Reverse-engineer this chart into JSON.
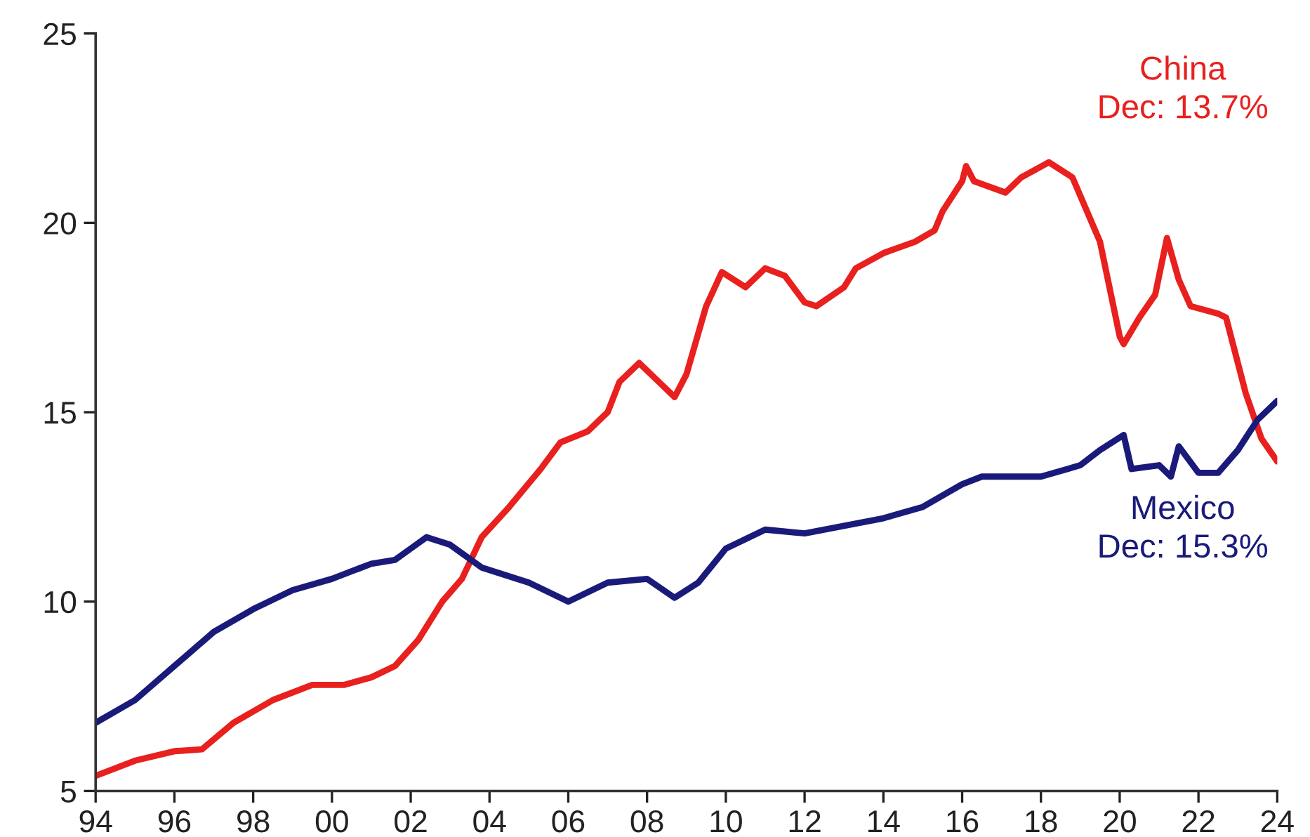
{
  "chart_data": {
    "type": "line",
    "xlim": [
      1994,
      2024
    ],
    "ylim": [
      5,
      25
    ],
    "xticks": [
      {
        "value": 1994,
        "label": "94"
      },
      {
        "value": 1996,
        "label": "96"
      },
      {
        "value": 1998,
        "label": "98"
      },
      {
        "value": 2000,
        "label": "00"
      },
      {
        "value": 2002,
        "label": "02"
      },
      {
        "value": 2004,
        "label": "04"
      },
      {
        "value": 2006,
        "label": "06"
      },
      {
        "value": 2008,
        "label": "08"
      },
      {
        "value": 2010,
        "label": "10"
      },
      {
        "value": 2012,
        "label": "12"
      },
      {
        "value": 2014,
        "label": "14"
      },
      {
        "value": 2016,
        "label": "16"
      },
      {
        "value": 2018,
        "label": "18"
      },
      {
        "value": 2020,
        "label": "20"
      },
      {
        "value": 2022,
        "label": "22"
      },
      {
        "value": 2024,
        "label": "24"
      }
    ],
    "yticks": [
      5,
      10,
      15,
      20,
      25
    ],
    "grid": false,
    "legend": false,
    "annotations": [
      "Dec: 13.7%",
      "Dec: 15.3%"
    ],
    "series": [
      {
        "name": "China",
        "color": "#e8201e",
        "x": [
          1994,
          1995,
          1996,
          1996.7,
          1997.5,
          1998.5,
          1999.5,
          2000.3,
          2001,
          2001.6,
          2002.2,
          2002.8,
          2003.3,
          2003.8,
          2004.5,
          2005.3,
          2005.8,
          2006.5,
          2007,
          2007.3,
          2007.8,
          2008.3,
          2008.7,
          2009,
          2009.5,
          2009.9,
          2010.5,
          2011,
          2011.5,
          2012,
          2012.3,
          2013,
          2013.3,
          2014,
          2014.8,
          2015.3,
          2015.5,
          2016,
          2016.1,
          2016.3,
          2017.1,
          2017.5,
          2018.2,
          2018.8,
          2019.5,
          2020,
          2020.1,
          2020.5,
          2020.9,
          2021.2,
          2021.5,
          2021.8,
          2022.5,
          2022.7,
          2023.2,
          2023.6,
          2024
        ],
        "values": [
          5.4,
          5.8,
          6.05,
          6.1,
          6.8,
          7.4,
          7.8,
          7.8,
          8.0,
          8.3,
          9.0,
          10.0,
          10.6,
          11.7,
          12.5,
          13.5,
          14.2,
          14.5,
          15.0,
          15.8,
          16.3,
          15.8,
          15.4,
          16.0,
          17.8,
          18.7,
          18.3,
          18.8,
          18.6,
          17.9,
          17.8,
          18.3,
          18.8,
          19.2,
          19.5,
          19.8,
          20.3,
          21.1,
          21.5,
          21.1,
          20.8,
          21.2,
          21.6,
          21.2,
          19.5,
          17.0,
          16.8,
          17.5,
          18.1,
          19.6,
          18.5,
          17.8,
          17.6,
          17.5,
          15.5,
          14.3,
          13.7
        ]
      },
      {
        "name": "Mexico",
        "color": "#1a1a7a",
        "x": [
          1994,
          1995,
          1996,
          1997,
          1998,
          1999,
          2000,
          2001,
          2001.6,
          2002,
          2002.4,
          2003,
          2003.8,
          2005,
          2006,
          2007,
          2008,
          2008.7,
          2009.3,
          2010,
          2011,
          2012,
          2013,
          2014,
          2015,
          2016,
          2016.5,
          2018,
          2019,
          2019.5,
          2020.1,
          2020.3,
          2021,
          2021.3,
          2021.5,
          2022,
          2022.5,
          2023,
          2023.5,
          2024
        ],
        "values": [
          6.8,
          7.4,
          8.3,
          9.2,
          9.8,
          10.3,
          10.6,
          11.0,
          11.1,
          11.4,
          11.7,
          11.5,
          10.9,
          10.5,
          10.0,
          10.5,
          10.6,
          10.1,
          10.5,
          11.4,
          11.9,
          11.8,
          12.0,
          12.2,
          12.5,
          13.1,
          13.3,
          13.3,
          13.6,
          14.0,
          14.4,
          13.5,
          13.6,
          13.3,
          14.1,
          13.4,
          13.4,
          14.0,
          14.8,
          15.3
        ]
      }
    ]
  }
}
